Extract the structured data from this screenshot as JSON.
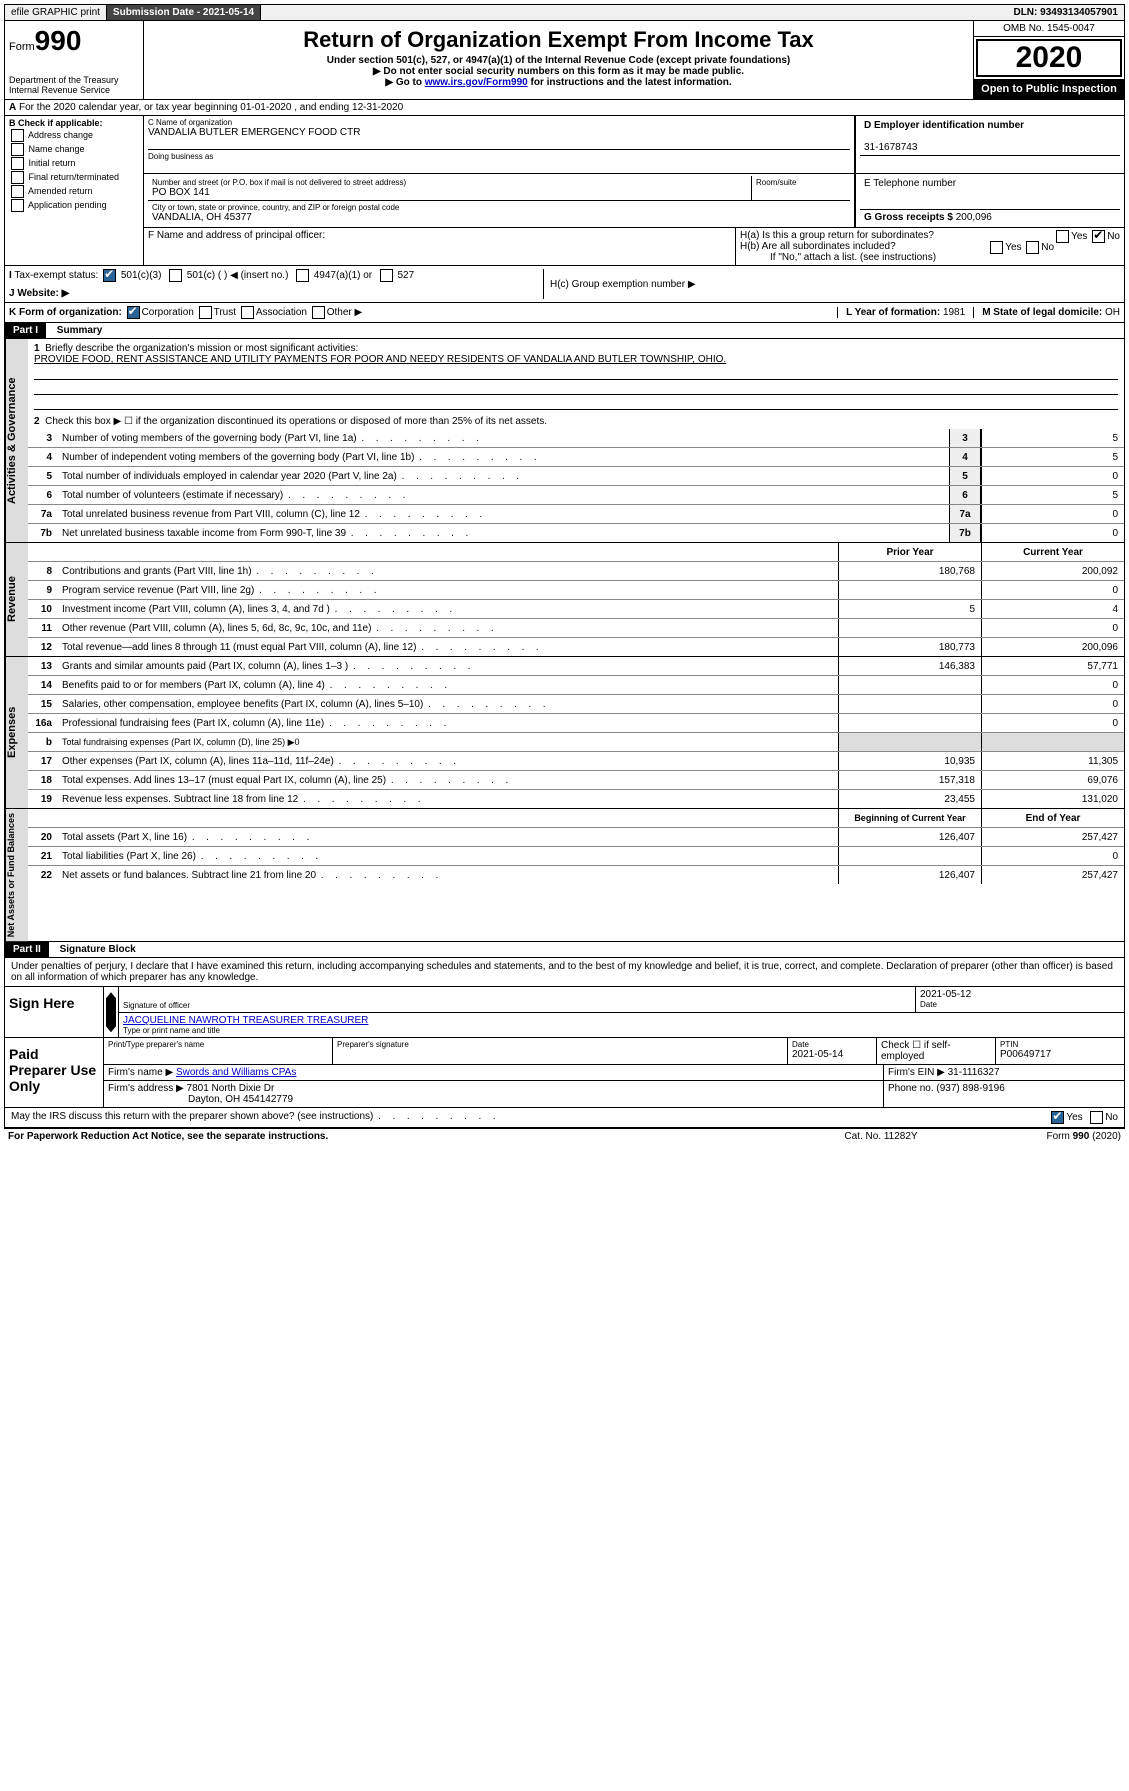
{
  "topbar": {
    "efile": "efile GRAPHIC print",
    "submission": "Submission Date - 2021-05-14",
    "dln": "DLN: 93493134057901"
  },
  "header": {
    "form_prefix": "Form",
    "form_num": "990",
    "dept": "Department of the Treasury Internal Revenue Service",
    "title": "Return of Organization Exempt From Income Tax",
    "sub1": "Under section 501(c), 527, or 4947(a)(1) of the Internal Revenue Code (except private foundations)",
    "sub2": "▶ Do not enter social security numbers on this form as it may be made public.",
    "sub3_pre": "▶ Go to ",
    "sub3_link": "www.irs.gov/Form990",
    "sub3_post": " for instructions and the latest information.",
    "omb": "OMB No. 1545-0047",
    "year": "2020",
    "open": "Open to Public Inspection"
  },
  "row_a": "For the 2020 calendar year, or tax year beginning 01-01-2020     , and ending 12-31-2020",
  "section_b": {
    "title": "B Check if applicable:",
    "opts": [
      "Address change",
      "Name change",
      "Initial return",
      "Final return/terminated",
      "Amended return",
      "Application pending"
    ]
  },
  "section_c": {
    "name_label": "C Name of organization",
    "name": "VANDALIA BUTLER EMERGENCY FOOD CTR",
    "dba_label": "Doing business as",
    "addr_label": "Number and street (or P.O. box if mail is not delivered to street address)",
    "room_label": "Room/suite",
    "addr": "PO BOX 141",
    "city_label": "City or town, state or province, country, and ZIP or foreign postal code",
    "city": "VANDALIA, OH  45377",
    "f_label": "F Name and address of principal officer:"
  },
  "section_d": {
    "label": "D Employer identification number",
    "value": "31-1678743"
  },
  "section_e": {
    "label": "E Telephone number"
  },
  "section_g": {
    "label": "G Gross receipts $",
    "value": "200,096"
  },
  "section_h": {
    "ha": "H(a)  Is this a group return for subordinates?",
    "hb": "H(b)  Are all subordinates included?",
    "hb_note": "If \"No,\" attach a list. (see instructions)",
    "hc": "H(c)  Group exemption number ▶",
    "yes": "Yes",
    "no": "No"
  },
  "row_i": {
    "label": "Tax-exempt status:",
    "o1": "501(c)(3)",
    "o2": "501(c) (  ) ◀ (insert no.)",
    "o3": "4947(a)(1) or",
    "o4": "527"
  },
  "row_j": {
    "label": "Website: ▶"
  },
  "row_k": {
    "label": "K Form of organization:",
    "corp": "Corporation",
    "trust": "Trust",
    "assoc": "Association",
    "other": "Other ▶",
    "l_label": "L Year of formation:",
    "l_val": "1981",
    "m_label": "M State of legal domicile:",
    "m_val": "OH"
  },
  "part1": {
    "title": "Part I",
    "subtitle": "Summary",
    "side_gov": "Activities & Governance",
    "side_rev": "Revenue",
    "side_exp": "Expenses",
    "side_net": "Net Assets or Fund Balances",
    "l1": "Briefly describe the organization's mission or most significant activities:",
    "l1_text": "PROVIDE FOOD, RENT ASSISTANCE AND UTILITY PAYMENTS FOR POOR AND NEEDY RESIDENTS OF VANDALIA AND BUTLER TOWNSHIP, OHIO.",
    "l2": "Check this box ▶ ☐  if the organization discontinued its operations or disposed of more than 25% of its net assets.",
    "lines_gov": [
      {
        "n": "3",
        "d": "Number of voting members of the governing body (Part VI, line 1a)",
        "box": "3",
        "v": "5"
      },
      {
        "n": "4",
        "d": "Number of independent voting members of the governing body (Part VI, line 1b)",
        "box": "4",
        "v": "5"
      },
      {
        "n": "5",
        "d": "Total number of individuals employed in calendar year 2020 (Part V, line 2a)",
        "box": "5",
        "v": "0"
      },
      {
        "n": "6",
        "d": "Total number of volunteers (estimate if necessary)",
        "box": "6",
        "v": "5"
      },
      {
        "n": "7a",
        "d": "Total unrelated business revenue from Part VIII, column (C), line 12",
        "box": "7a",
        "v": "0"
      },
      {
        "n": "7b",
        "d": "Net unrelated business taxable income from Form 990-T, line 39",
        "box": "7b",
        "v": "0"
      }
    ],
    "hdr_prior": "Prior Year",
    "hdr_current": "Current Year",
    "lines_rev": [
      {
        "n": "8",
        "d": "Contributions and grants (Part VIII, line 1h)",
        "p": "180,768",
        "c": "200,092"
      },
      {
        "n": "9",
        "d": "Program service revenue (Part VIII, line 2g)",
        "p": "",
        "c": "0"
      },
      {
        "n": "10",
        "d": "Investment income (Part VIII, column (A), lines 3, 4, and 7d )",
        "p": "5",
        "c": "4"
      },
      {
        "n": "11",
        "d": "Other revenue (Part VIII, column (A), lines 5, 6d, 8c, 9c, 10c, and 11e)",
        "p": "",
        "c": "0"
      },
      {
        "n": "12",
        "d": "Total revenue—add lines 8 through 11 (must equal Part VIII, column (A), line 12)",
        "p": "180,773",
        "c": "200,096"
      }
    ],
    "lines_exp": [
      {
        "n": "13",
        "d": "Grants and similar amounts paid (Part IX, column (A), lines 1–3 )",
        "p": "146,383",
        "c": "57,771"
      },
      {
        "n": "14",
        "d": "Benefits paid to or for members (Part IX, column (A), line 4)",
        "p": "",
        "c": "0"
      },
      {
        "n": "15",
        "d": "Salaries, other compensation, employee benefits (Part IX, column (A), lines 5–10)",
        "p": "",
        "c": "0"
      },
      {
        "n": "16a",
        "d": "Professional fundraising fees (Part IX, column (A), line 11e)",
        "p": "",
        "c": "0"
      },
      {
        "n": "b",
        "d": "Total fundraising expenses (Part IX, column (D), line 25) ▶0",
        "p": "grey",
        "c": "grey"
      },
      {
        "n": "17",
        "d": "Other expenses (Part IX, column (A), lines 11a–11d, 11f–24e)",
        "p": "10,935",
        "c": "11,305"
      },
      {
        "n": "18",
        "d": "Total expenses. Add lines 13–17 (must equal Part IX, column (A), line 25)",
        "p": "157,318",
        "c": "69,076"
      },
      {
        "n": "19",
        "d": "Revenue less expenses. Subtract line 18 from line 12",
        "p": "23,455",
        "c": "131,020"
      }
    ],
    "hdr_begin": "Beginning of Current Year",
    "hdr_end": "End of Year",
    "lines_net": [
      {
        "n": "20",
        "d": "Total assets (Part X, line 16)",
        "p": "126,407",
        "c": "257,427"
      },
      {
        "n": "21",
        "d": "Total liabilities (Part X, line 26)",
        "p": "",
        "c": "0"
      },
      {
        "n": "22",
        "d": "Net assets or fund balances. Subtract line 21 from line 20",
        "p": "126,407",
        "c": "257,427"
      }
    ]
  },
  "part2": {
    "title": "Part II",
    "subtitle": "Signature Block",
    "perjury": "Under penalties of perjury, I declare that I have examined this return, including accompanying schedules and statements, and to the best of my knowledge and belief, it is true, correct, and complete. Declaration of preparer (other than officer) is based on all information of which preparer has any knowledge.",
    "sign_here": "Sign Here",
    "sig_officer": "Signature of officer",
    "date": "Date",
    "date_val": "2021-05-12",
    "officer_name": "JACQUELINE NAWROTH TREASURER  TREASURER",
    "type_name": "Type or print name and title",
    "paid": "Paid Preparer Use Only",
    "prep_name_label": "Print/Type preparer's name",
    "prep_sig_label": "Preparer's signature",
    "prep_date_label": "Date",
    "prep_date": "2021-05-14",
    "check_if": "Check ☐ if self-employed",
    "ptin_label": "PTIN",
    "ptin": "P00649717",
    "firm_name_label": "Firm's name    ▶",
    "firm_name": "Swords and Williams CPAs",
    "firm_ein_label": "Firm's EIN ▶",
    "firm_ein": "31-1116327",
    "firm_addr_label": "Firm's address ▶",
    "firm_addr": "7801 North Dixie Dr",
    "firm_city": "Dayton, OH  454142779",
    "phone_label": "Phone no.",
    "phone": "(937) 898-9196",
    "discuss": "May the IRS discuss this return with the preparer shown above? (see instructions)",
    "yes": "Yes",
    "no": "No"
  },
  "footer": {
    "pra": "For Paperwork Reduction Act Notice, see the separate instructions.",
    "cat": "Cat. No. 11282Y",
    "form": "Form 990 (2020)"
  }
}
